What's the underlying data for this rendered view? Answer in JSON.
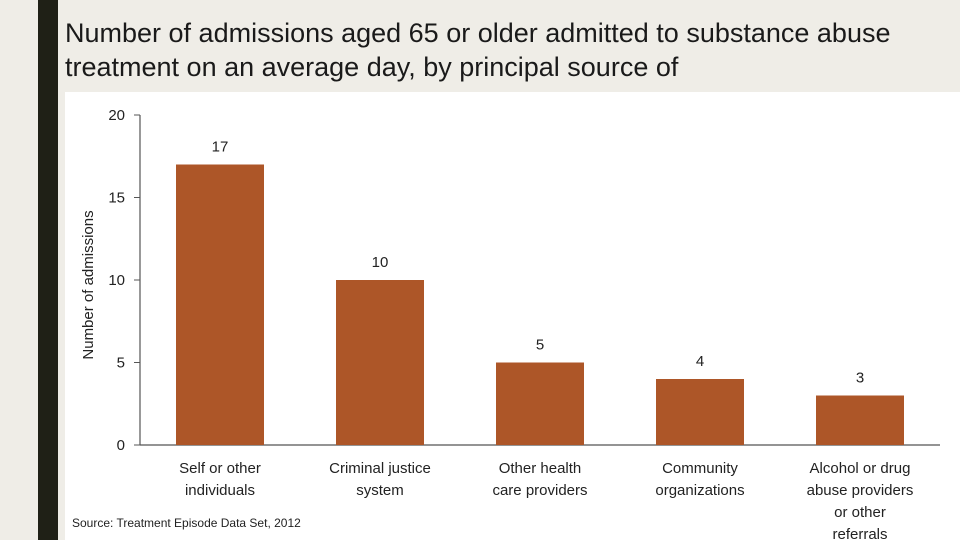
{
  "chart_data": {
    "type": "bar",
    "title": "Number of admissions aged 65 or older admitted to substance abuse treatment on an average day, by principal source of",
    "y_label": "Number of admissions",
    "categories": [
      "Self or other individuals",
      "Criminal justice system",
      "Other health care providers",
      "Community organizations",
      "Alcohol or drug abuse providers or other referrals"
    ],
    "values": [
      17,
      10,
      5,
      4,
      3
    ],
    "color": "#ad5628",
    "ylim": [
      0,
      20
    ],
    "yticks": [
      0,
      5,
      10,
      15,
      20
    ],
    "grid": false,
    "source": "Source: Treatment Episode Data Set, 2012"
  }
}
